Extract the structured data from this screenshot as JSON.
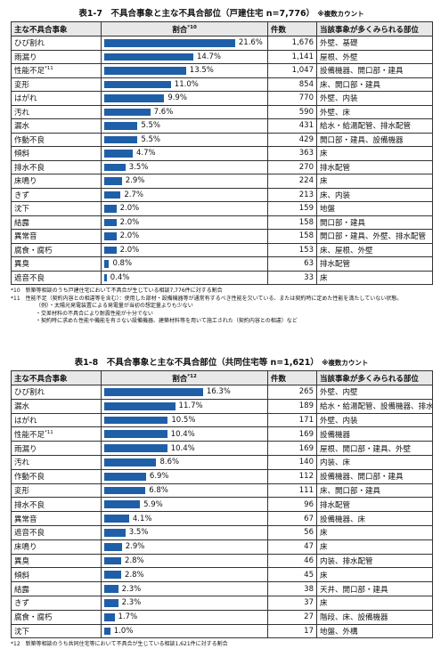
{
  "tables": [
    {
      "title": "表1-7　不具合事象と主な不具合部位（戸建住宅 n=7,776）",
      "count_note": "※複数カウント",
      "headers": {
        "event": "主な不具合事象",
        "pct": "割合",
        "pct_note": "*10",
        "count": "件数",
        "parts": "当該事象が多くみられる部位"
      },
      "rows": [
        {
          "event": "ひび割れ",
          "pct": 21.6,
          "pct_label": "21.6%",
          "count": "1,676",
          "parts": "外壁、基礎"
        },
        {
          "event": "雨漏り",
          "pct": 14.7,
          "pct_label": "14.7%",
          "count": "1,141",
          "parts": "屋根、外壁"
        },
        {
          "event": "性能不足",
          "event_note": "*11",
          "pct": 13.5,
          "pct_label": "13.5%",
          "count": "1,047",
          "parts": "設備機器、開口部・建具"
        },
        {
          "event": "変形",
          "pct": 11.0,
          "pct_label": "11.0%",
          "count": "854",
          "parts": "床、開口部・建具"
        },
        {
          "event": "はがれ",
          "pct": 9.9,
          "pct_label": "9.9%",
          "count": "770",
          "parts": "外壁、内装"
        },
        {
          "event": "汚れ",
          "pct": 7.6,
          "pct_label": "7.6%",
          "count": "590",
          "parts": "外壁、床"
        },
        {
          "event": "漏水",
          "pct": 5.5,
          "pct_label": "5.5%",
          "count": "431",
          "parts": "給水・給湯配管、排水配管"
        },
        {
          "event": "作動不良",
          "pct": 5.5,
          "pct_label": "5.5%",
          "count": "429",
          "parts": "開口部・建具、設備機器"
        },
        {
          "event": "傾斜",
          "pct": 4.7,
          "pct_label": "4.7%",
          "count": "363",
          "parts": "床"
        },
        {
          "event": "排水不良",
          "pct": 3.5,
          "pct_label": "3.5%",
          "count": "270",
          "parts": "排水配管"
        },
        {
          "event": "床鳴り",
          "pct": 2.9,
          "pct_label": "2.9%",
          "count": "224",
          "parts": "床"
        },
        {
          "event": "きず",
          "pct": 2.7,
          "pct_label": "2.7%",
          "count": "213",
          "parts": "床、内装"
        },
        {
          "event": "沈下",
          "pct": 2.0,
          "pct_label": "2.0%",
          "count": "159",
          "parts": "地盤"
        },
        {
          "event": "結露",
          "pct": 2.0,
          "pct_label": "2.0%",
          "count": "158",
          "parts": "開口部・建具"
        },
        {
          "event": "異常音",
          "pct": 2.0,
          "pct_label": "2.0%",
          "count": "158",
          "parts": "開口部・建具、外壁、排水配管"
        },
        {
          "event": "腐食・腐朽",
          "pct": 2.0,
          "pct_label": "2.0%",
          "count": "153",
          "parts": "床、屋根、外壁"
        },
        {
          "event": "異臭",
          "pct": 0.8,
          "pct_label": "0.8%",
          "count": "63",
          "parts": "排水配管"
        },
        {
          "event": "遮音不良",
          "pct": 0.4,
          "pct_label": "0.4%",
          "count": "33",
          "parts": "床"
        }
      ],
      "footnotes": [
        "*10　新築等相談のうち戸建住宅において不具合が生じている相談7,776件に対する割合",
        "*11　性能不足（契約内容との相違等を含む）：使用した部材・設備機器等が通常有するべき性能を欠いている、または契約時に定めた性能を満たしていない状態。",
        "（例）・太陽光発電装置による発電量が当初の想定量よりも少ない",
        "・交差材料の不具合により耐震性能が十分でない",
        "・契約時に求めた性能や機能を有さない設備機器、建築材料等を用いて施工された（契約内容との相違）など"
      ]
    },
    {
      "title": "表1-8　不具合事象と主な不具合部位（共同住宅等 n=1,621）",
      "count_note": "※複数カウント",
      "headers": {
        "event": "主な不具合事象",
        "pct": "割合",
        "pct_note": "*12",
        "count": "件数",
        "parts": "当該事象が多くみられる部位"
      },
      "rows": [
        {
          "event": "ひび割れ",
          "pct": 16.3,
          "pct_label": "16.3%",
          "count": "265",
          "parts": "外壁、内壁"
        },
        {
          "event": "漏水",
          "pct": 11.7,
          "pct_label": "11.7%",
          "count": "189",
          "parts": "給水・給湯配管、設備機器、排水配管"
        },
        {
          "event": "はがれ",
          "pct": 10.5,
          "pct_label": "10.5%",
          "count": "171",
          "parts": "外壁、内装"
        },
        {
          "event": "性能不足",
          "event_note": "*11",
          "pct": 10.4,
          "pct_label": "10.4%",
          "count": "169",
          "parts": "設備機器"
        },
        {
          "event": "雨漏り",
          "pct": 10.4,
          "pct_label": "10.4%",
          "count": "169",
          "parts": "屋根、開口部・建具、外壁"
        },
        {
          "event": "汚れ",
          "pct": 8.6,
          "pct_label": "8.6%",
          "count": "140",
          "parts": "内装、床"
        },
        {
          "event": "作動不良",
          "pct": 6.9,
          "pct_label": "6.9%",
          "count": "112",
          "parts": "設備機器、開口部・建具"
        },
        {
          "event": "変形",
          "pct": 6.8,
          "pct_label": "6.8%",
          "count": "111",
          "parts": "床、開口部・建具"
        },
        {
          "event": "排水不良",
          "pct": 5.9,
          "pct_label": "5.9%",
          "count": "96",
          "parts": "排水配管"
        },
        {
          "event": "異常音",
          "pct": 4.1,
          "pct_label": "4.1%",
          "count": "67",
          "parts": "設備機器、床"
        },
        {
          "event": "遮音不良",
          "pct": 3.5,
          "pct_label": "3.5%",
          "count": "56",
          "parts": "床"
        },
        {
          "event": "床鳴り",
          "pct": 2.9,
          "pct_label": "2.9%",
          "count": "47",
          "parts": "床"
        },
        {
          "event": "異臭",
          "pct": 2.8,
          "pct_label": "2.8%",
          "count": "46",
          "parts": "内装、排水配管"
        },
        {
          "event": "傾斜",
          "pct": 2.8,
          "pct_label": "2.8%",
          "count": "45",
          "parts": "床"
        },
        {
          "event": "結露",
          "pct": 2.3,
          "pct_label": "2.3%",
          "count": "38",
          "parts": "天井、開口部・建具"
        },
        {
          "event": "きず",
          "pct": 2.3,
          "pct_label": "2.3%",
          "count": "37",
          "parts": "床"
        },
        {
          "event": "腐食・腐朽",
          "pct": 1.7,
          "pct_label": "1.7%",
          "count": "27",
          "parts": "階段、床、設備機器"
        },
        {
          "event": "沈下",
          "pct": 1.0,
          "pct_label": "1.0%",
          "count": "17",
          "parts": "地盤、外構"
        }
      ],
      "footnotes": [
        "*12　新築等相談のうち共同住宅等において不具合が生じている相談1,621件に対する割合"
      ]
    }
  ]
}
